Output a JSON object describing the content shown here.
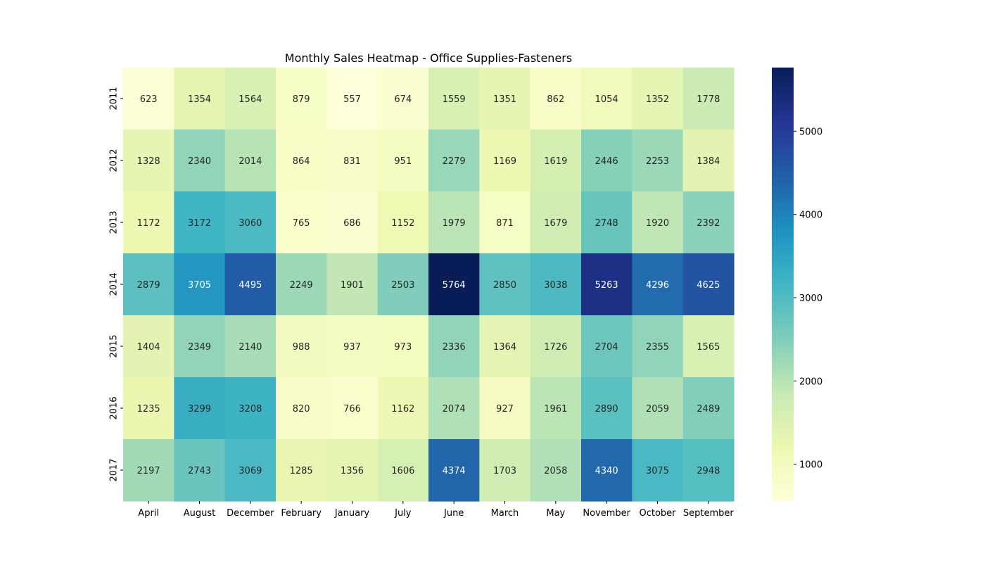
{
  "chart_data": {
    "type": "heatmap",
    "title": "Monthly Sales Heatmap - Office Supplies-Fasteners",
    "xlabel": "",
    "ylabel": "",
    "x_categories": [
      "April",
      "August",
      "December",
      "February",
      "January",
      "July",
      "June",
      "March",
      "May",
      "November",
      "October",
      "September"
    ],
    "y_categories": [
      "2011",
      "2012",
      "2013",
      "2014",
      "2015",
      "2016",
      "2017"
    ],
    "values": [
      [
        623,
        1354,
        1564,
        879,
        557,
        674,
        1559,
        1351,
        862,
        1054,
        1352,
        1778
      ],
      [
        1328,
        2340,
        2014,
        864,
        831,
        951,
        2279,
        1169,
        1619,
        2446,
        2253,
        1384
      ],
      [
        1172,
        3172,
        3060,
        765,
        686,
        1152,
        1979,
        871,
        1679,
        2748,
        1920,
        2392
      ],
      [
        2879,
        3705,
        4495,
        2249,
        1901,
        2503,
        5764,
        2850,
        3038,
        5263,
        4296,
        4625
      ],
      [
        1404,
        2349,
        2140,
        988,
        937,
        973,
        2336,
        1364,
        1726,
        2704,
        2355,
        1565
      ],
      [
        1235,
        3299,
        3208,
        820,
        766,
        1162,
        2074,
        927,
        1961,
        2890,
        2059,
        2489
      ],
      [
        2197,
        2743,
        3069,
        1285,
        1356,
        1606,
        4374,
        1703,
        2058,
        4340,
        3075,
        2948
      ]
    ],
    "colorbar": {
      "colormap": "YlGnBu",
      "range": [
        557,
        5764
      ],
      "ticks": [
        1000,
        2000,
        3000,
        4000,
        5000
      ],
      "tick_labels": [
        "1000",
        "2000",
        "3000",
        "4000",
        "5000"
      ]
    },
    "annotations": true,
    "grid": false
  }
}
